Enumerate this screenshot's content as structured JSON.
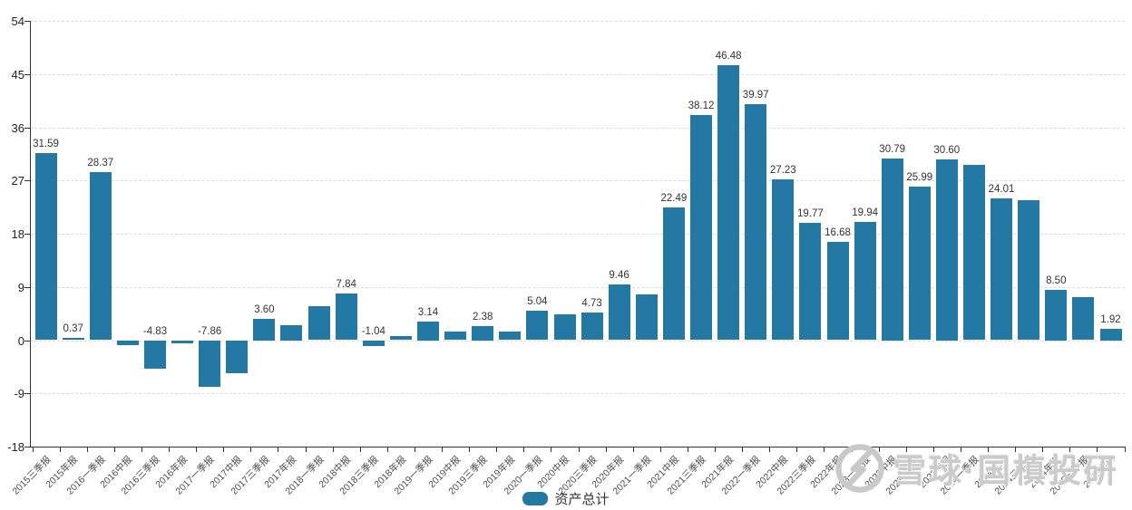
{
  "chart_data": {
    "type": "bar",
    "legend_label": "资产总计",
    "legend_position": "bottom-center",
    "bar_color": "#2478a4",
    "grid_color": "#dcdcdc",
    "axis_color": "#333333",
    "ylim": [
      -18,
      54
    ],
    "yticks": [
      54,
      45,
      36,
      27,
      18,
      9,
      0,
      -9,
      -18
    ],
    "grid": true,
    "categories": [
      "2015三季报",
      "2015年报",
      "2016一季报",
      "2016中报",
      "2016三季报",
      "2016年报",
      "2017一季报",
      "2017中报",
      "2017三季报",
      "2017年报",
      "2018一季报",
      "2018中报",
      "2018三季报",
      "2018年报",
      "2019一季报",
      "2019中报",
      "2019三季报",
      "2019年报",
      "2020一季报",
      "2020中报",
      "2020三季报",
      "2020年报",
      "2021一季报",
      "2021中报",
      "2021三季报",
      "2021年报",
      "2022一季报",
      "2022中报",
      "2022三季报",
      "2022年报",
      "2023一季报",
      "2023中报",
      "2023三季报",
      "2023年报",
      "2024一季报",
      "2024中报",
      "2024三季报",
      "2024年报",
      "2025一季报",
      "2025中报"
    ],
    "values": [
      31.59,
      0.37,
      28.37,
      -0.9,
      -4.83,
      -0.6,
      -7.86,
      -5.6,
      3.6,
      2.6,
      5.7,
      7.84,
      -1.04,
      0.7,
      3.14,
      1.5,
      2.38,
      1.5,
      5.04,
      4.3,
      4.73,
      9.46,
      7.7,
      22.49,
      38.12,
      46.48,
      39.97,
      27.23,
      19.77,
      16.68,
      19.94,
      30.79,
      25.99,
      30.6,
      29.6,
      24.01,
      23.6,
      8.5,
      7.3,
      1.92
    ],
    "data_labels": [
      "31.59",
      "0.37",
      "28.37",
      null,
      "-4.83",
      null,
      "-7.86",
      null,
      "3.60",
      null,
      null,
      "7.84",
      "-1.04",
      null,
      "3.14",
      null,
      "2.38",
      null,
      "5.04",
      null,
      "4.73",
      "9.46",
      null,
      "22.49",
      "38.12",
      "46.48",
      "39.97",
      "27.23",
      "19.77",
      "16.68",
      "19.94",
      "30.79",
      "25.99",
      "30.60",
      null,
      "24.01",
      null,
      "8.50",
      null,
      "1.92"
    ]
  },
  "watermark": {
    "text": "雪球·国槙投研",
    "logo": "xueqiu-camera-logo"
  }
}
